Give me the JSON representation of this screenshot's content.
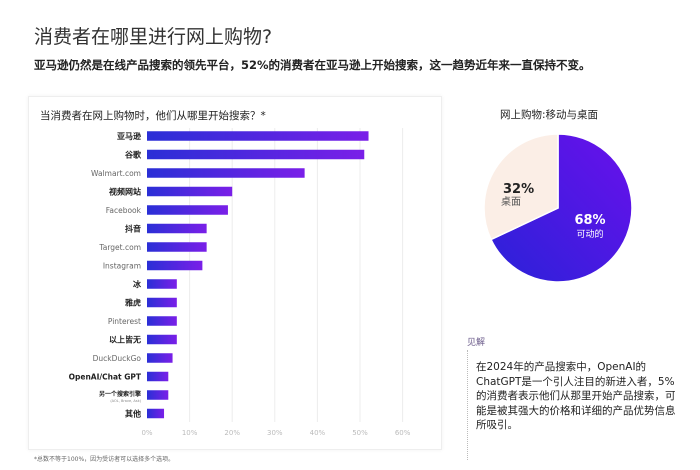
{
  "header": {
    "title": "消费者在哪里进行网上购物?",
    "subtitle": "亚马逊仍然是在线产品搜索的领先平台，52%的消费者在亚马逊上开始搜索，这一趋势近年来一直保持不变。"
  },
  "chart_data": [
    {
      "type": "bar",
      "orientation": "horizontal",
      "title": "当消费者在网上购物时，他们从哪里开始搜索？*",
      "categories": [
        "亚马逊",
        "谷歌",
        "Walmart.com",
        "视频网站",
        "Facebook",
        "抖音",
        "Target.com",
        "Instagram",
        "冰",
        "雅虎",
        "Pinterest",
        "以上皆无",
        "DuckDuckGo",
        "OpenAI/Chat GPT",
        "另一个搜索引擎",
        "其他"
      ],
      "category_notes": {
        "另一个搜索引擎": "(AOL, Brave, Ask)"
      },
      "values": [
        52,
        51,
        37,
        20,
        19,
        14,
        14,
        13,
        7,
        7,
        7,
        7,
        6,
        5,
        5,
        4
      ],
      "xlim": [
        0,
        60
      ],
      "xticks": [
        "0%",
        "10%",
        "20%",
        "30%",
        "40%",
        "50%",
        "60%"
      ],
      "grid": true,
      "colors": {
        "bar_start": "#2a2fd6",
        "bar_end": "#7a1fe8"
      },
      "footnote": "*总数不等于100%，因为受访者可以选择多个选项。"
    },
    {
      "type": "pie",
      "title": "网上购物:移动与桌面",
      "slices": [
        {
          "label": "可动的",
          "value": 68,
          "display": "68%",
          "color": "#4a18e8"
        },
        {
          "label": "桌面",
          "value": 32,
          "display": "32%",
          "color": "#fbeee6"
        }
      ]
    }
  ],
  "insight": {
    "label": "见解",
    "text": "在2024年的产品搜索中，OpenAI的ChatGPT是一个引人注目的新进入者，5%的消费者表示他们从那里开始产品搜索，可能是被其强大的价格和详细的产品优势信息所吸引。"
  }
}
